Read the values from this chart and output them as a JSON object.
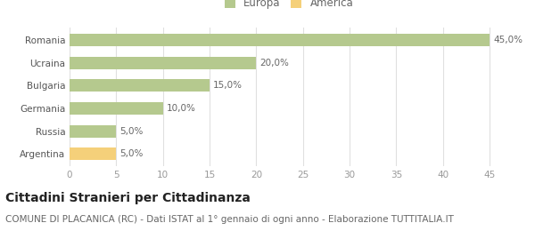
{
  "categories": [
    "Romania",
    "Ucraina",
    "Bulgaria",
    "Germania",
    "Russia",
    "Argentina"
  ],
  "values": [
    45.0,
    20.0,
    15.0,
    10.0,
    5.0,
    5.0
  ],
  "bar_colors": [
    "#b5c98e",
    "#b5c98e",
    "#b5c98e",
    "#b5c98e",
    "#b5c98e",
    "#f5d07a"
  ],
  "labels": [
    "45,0%",
    "20,0%",
    "15,0%",
    "10,0%",
    "5,0%",
    "5,0%"
  ],
  "legend": [
    {
      "label": "Europa",
      "color": "#b5c98e"
    },
    {
      "label": "America",
      "color": "#f5d07a"
    }
  ],
  "xlim": [
    0,
    47
  ],
  "xticks": [
    0,
    5,
    10,
    15,
    20,
    25,
    30,
    35,
    40,
    45
  ],
  "title": "Cittadini Stranieri per Cittadinanza",
  "subtitle": "COMUNE DI PLACANICA (RC) - Dati ISTAT al 1° gennaio di ogni anno - Elaborazione TUTTITALIA.IT",
  "title_fontsize": 10,
  "subtitle_fontsize": 7.5,
  "label_fontsize": 7.5,
  "tick_fontsize": 7.5,
  "bar_height": 0.55,
  "background_color": "#ffffff",
  "grid_color": "#e0e0e0"
}
